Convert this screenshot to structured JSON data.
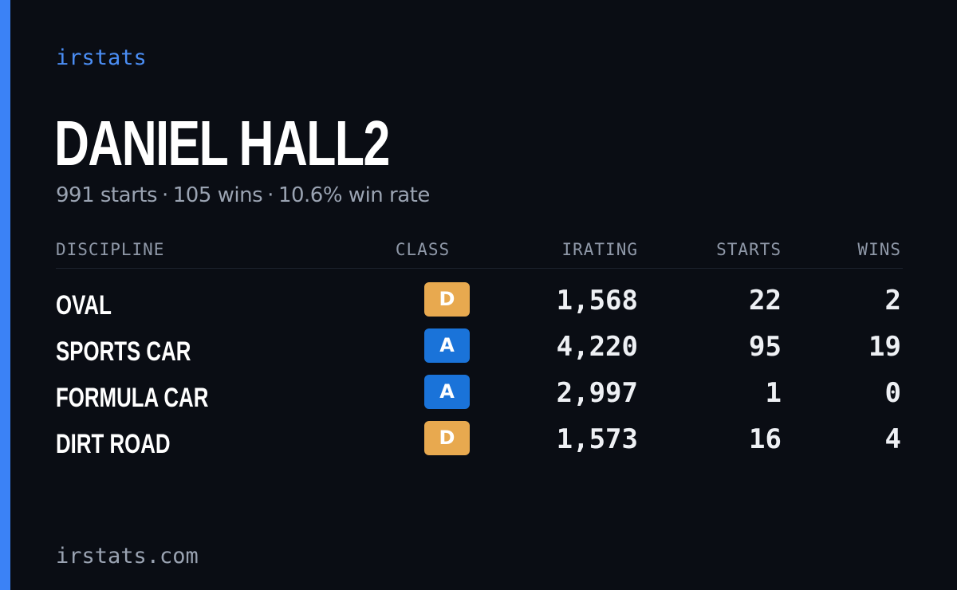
{
  "brand": "irstats",
  "driver": {
    "name": "DANIEL HALL2",
    "starts_text": "991 starts",
    "wins_text": "105 wins",
    "win_rate_text": "10.6% win rate",
    "separator": "·"
  },
  "table": {
    "headers": {
      "discipline": "DISCIPLINE",
      "class": "CLASS",
      "irating": "IRATING",
      "starts": "STARTS",
      "wins": "WINS"
    },
    "rows": [
      {
        "discipline": "OVAL",
        "class": "D",
        "class_color": "#e8a94f",
        "irating": "1,568",
        "starts": "22",
        "wins": "2"
      },
      {
        "discipline": "SPORTS CAR",
        "class": "A",
        "class_color": "#1a73d9",
        "irating": "4,220",
        "starts": "95",
        "wins": "19"
      },
      {
        "discipline": "FORMULA CAR",
        "class": "A",
        "class_color": "#1a73d9",
        "irating": "2,997",
        "starts": "1",
        "wins": "0"
      },
      {
        "discipline": "DIRT ROAD",
        "class": "D",
        "class_color": "#e8a94f",
        "irating": "1,573",
        "starts": "16",
        "wins": "4"
      }
    ]
  },
  "footer": "irstats.com",
  "colors": {
    "accent": "#3b82f6",
    "background": "#0a0d14"
  }
}
